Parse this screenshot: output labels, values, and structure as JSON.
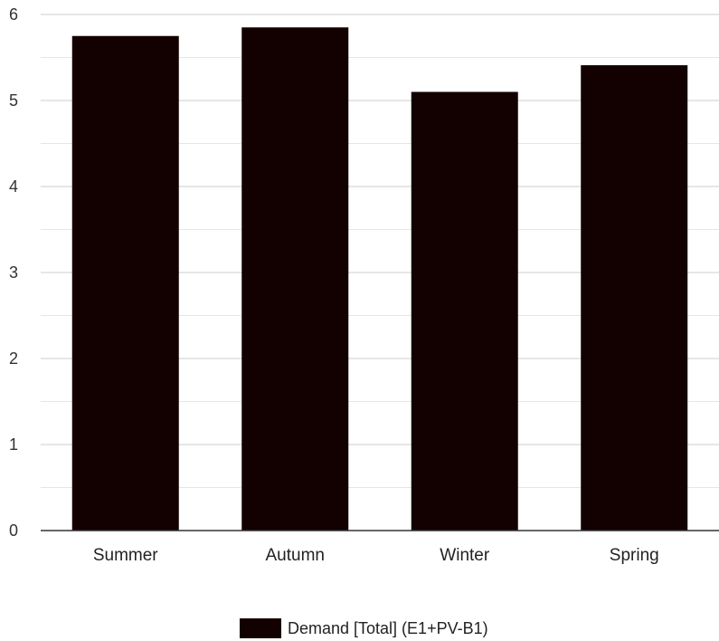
{
  "chart_data": {
    "type": "bar",
    "categories": [
      "Summer",
      "Autumn",
      "Winter",
      "Spring"
    ],
    "series": [
      {
        "name": "Demand [Total] (E1+PV-B1)",
        "values": [
          5.75,
          5.85,
          5.1,
          5.41
        ],
        "color": "#130000"
      }
    ],
    "ylim": [
      0,
      6
    ],
    "yticks": [
      "0",
      "1",
      "2",
      "3",
      "4",
      "5",
      "6"
    ],
    "grid": true,
    "minor_grid": true,
    "legend_position": "bottom-center",
    "colors": {
      "gridline": "#cccccc",
      "minor_gridline": "#e6e6e6",
      "axis": "#333333"
    }
  }
}
